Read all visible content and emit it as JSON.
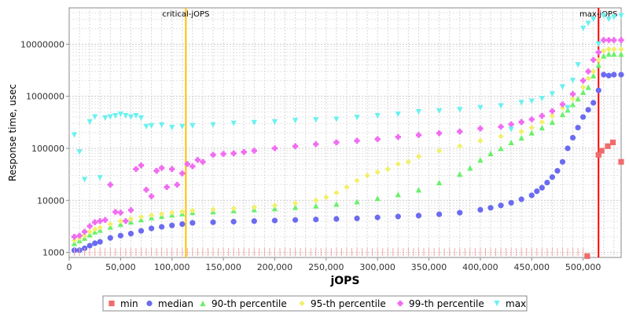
{
  "chart_data": {
    "type": "scatter",
    "xlabel": "jOPS",
    "ylabel": "Response time, usec",
    "xlim": [
      0,
      537000
    ],
    "ylim": [
      800,
      50000000
    ],
    "y_scale": "log",
    "grid": true,
    "legend_position": "bottom",
    "x_ticks": [
      0,
      50000,
      100000,
      150000,
      200000,
      250000,
      300000,
      350000,
      400000,
      450000,
      500000
    ],
    "x_tick_labels": [
      "0",
      "50,000",
      "100,000",
      "150,000",
      "200,000",
      "250,000",
      "300,000",
      "350,000",
      "400,000",
      "450,000",
      "500,000"
    ],
    "y_ticks": [
      1000,
      10000,
      100000,
      1000000,
      10000000
    ],
    "y_tick_labels": [
      "1000",
      "10000",
      "100000",
      "1000000",
      "10000000"
    ],
    "markers": [
      {
        "label": "critical-jOPS",
        "x": 113500,
        "color": "#ffc000"
      },
      {
        "label": "max-jOPS",
        "x": 515000,
        "color": "#ff0000"
      }
    ],
    "series": [
      {
        "name": "min",
        "color": "#f06b6b",
        "shape": "square",
        "x": [
          504000,
          515000,
          518000,
          524000,
          529000,
          537000
        ],
        "y": [
          850,
          75000,
          90000,
          110000,
          130000,
          55000
        ]
      },
      {
        "name": "median",
        "color": "#6b6bf0",
        "shape": "circle",
        "x": [
          5000,
          10000,
          15000,
          20000,
          25000,
          30000,
          40000,
          50000,
          60000,
          70000,
          80000,
          90000,
          100000,
          110000,
          120000,
          140000,
          160000,
          180000,
          200000,
          220000,
          240000,
          260000,
          280000,
          300000,
          320000,
          340000,
          360000,
          380000,
          400000,
          410000,
          420000,
          430000,
          440000,
          450000,
          455000,
          460000,
          465000,
          470000,
          475000,
          480000,
          485000,
          490000,
          495000,
          500000,
          505000,
          510000,
          515000,
          520000,
          525000,
          530000,
          537000
        ],
        "y": [
          1100,
          1100,
          1200,
          1350,
          1500,
          1600,
          1900,
          2100,
          2300,
          2600,
          2900,
          3100,
          3300,
          3500,
          3700,
          3800,
          3900,
          4000,
          4100,
          4200,
          4300,
          4400,
          4500,
          4700,
          4900,
          5100,
          5400,
          5800,
          6600,
          7200,
          8000,
          9000,
          10500,
          12500,
          15000,
          17500,
          22000,
          28000,
          37000,
          55000,
          100000,
          160000,
          250000,
          400000,
          550000,
          750000,
          1300000,
          2600000,
          2500000,
          2600000,
          2600000
        ]
      },
      {
        "name": "90-th percentile",
        "color": "#6bf06b",
        "shape": "triangle-up",
        "x": [
          5000,
          10000,
          15000,
          20000,
          25000,
          30000,
          40000,
          50000,
          60000,
          70000,
          80000,
          90000,
          100000,
          110000,
          120000,
          140000,
          160000,
          180000,
          200000,
          220000,
          240000,
          260000,
          280000,
          300000,
          320000,
          340000,
          360000,
          380000,
          390000,
          400000,
          410000,
          420000,
          430000,
          440000,
          450000,
          460000,
          470000,
          480000,
          485000,
          490000,
          495000,
          500000,
          505000,
          510000,
          515000,
          520000,
          525000,
          530000,
          537000
        ],
        "y": [
          1500,
          1700,
          1900,
          2200,
          2500,
          2700,
          3100,
          3500,
          3900,
          4300,
          4700,
          5000,
          5300,
          5600,
          5900,
          6100,
          6400,
          6700,
          7000,
          7400,
          7900,
          8500,
          9500,
          11000,
          13000,
          16000,
          22000,
          32000,
          42000,
          60000,
          80000,
          100000,
          130000,
          160000,
          200000,
          250000,
          320000,
          450000,
          550000,
          700000,
          900000,
          1200000,
          1500000,
          2500000,
          4000000,
          6000000,
          6500000,
          6500000,
          6500000
        ]
      },
      {
        "name": "95-th percentile",
        "color": "#f0f06b",
        "shape": "diamond",
        "x": [
          5000,
          10000,
          15000,
          20000,
          25000,
          30000,
          40000,
          50000,
          60000,
          70000,
          80000,
          90000,
          100000,
          110000,
          120000,
          140000,
          160000,
          180000,
          200000,
          220000,
          240000,
          250000,
          260000,
          270000,
          280000,
          290000,
          300000,
          310000,
          320000,
          330000,
          340000,
          360000,
          380000,
          400000,
          420000,
          440000,
          450000,
          460000,
          470000,
          480000,
          490000,
          500000,
          505000,
          510000,
          515000,
          520000,
          525000,
          530000,
          537000
        ],
        "y": [
          1700,
          1900,
          2100,
          2500,
          2800,
          3000,
          3500,
          4000,
          4400,
          4800,
          5200,
          5500,
          5800,
          6100,
          6400,
          6700,
          7000,
          7400,
          8000,
          8800,
          10000,
          11500,
          14000,
          18000,
          24000,
          30000,
          35000,
          40000,
          50000,
          55000,
          70000,
          90000,
          110000,
          140000,
          170000,
          210000,
          250000,
          320000,
          420000,
          600000,
          900000,
          1500000,
          2200000,
          3000000,
          5000000,
          7500000,
          8000000,
          8000000,
          8000000
        ]
      },
      {
        "name": "99-th percentile",
        "color": "#f06bf0",
        "shape": "plus",
        "x": [
          5000,
          10000,
          15000,
          20000,
          25000,
          30000,
          35000,
          40000,
          45000,
          50000,
          55000,
          60000,
          65000,
          70000,
          75000,
          80000,
          85000,
          90000,
          95000,
          100000,
          105000,
          110000,
          115000,
          120000,
          125000,
          130000,
          140000,
          150000,
          160000,
          170000,
          180000,
          200000,
          220000,
          240000,
          260000,
          280000,
          300000,
          320000,
          340000,
          360000,
          380000,
          400000,
          420000,
          430000,
          440000,
          450000,
          460000,
          470000,
          480000,
          490000,
          500000,
          505000,
          510000,
          515000,
          520000,
          525000,
          530000,
          537000
        ],
        "y": [
          2000,
          2100,
          2500,
          3200,
          3800,
          4000,
          4200,
          20000,
          6000,
          5800,
          4000,
          6500,
          40000,
          47000,
          16000,
          12000,
          37000,
          42000,
          18000,
          40000,
          20000,
          33000,
          50000,
          45000,
          60000,
          55000,
          75000,
          78000,
          80000,
          85000,
          90000,
          100000,
          110000,
          120000,
          130000,
          140000,
          150000,
          165000,
          180000,
          195000,
          210000,
          240000,
          260000,
          290000,
          320000,
          360000,
          420000,
          520000,
          700000,
          1100000,
          2000000,
          3000000,
          5000000,
          7000000,
          12000000,
          12000000,
          12000000,
          12000000
        ]
      },
      {
        "name": "max",
        "color": "#6bf0f0",
        "shape": "triangle-down",
        "x": [
          5000,
          10000,
          15000,
          20000,
          25000,
          30000,
          35000,
          40000,
          45000,
          50000,
          55000,
          60000,
          65000,
          70000,
          75000,
          80000,
          90000,
          100000,
          110000,
          120000,
          140000,
          160000,
          180000,
          200000,
          220000,
          240000,
          260000,
          280000,
          300000,
          320000,
          340000,
          360000,
          380000,
          400000,
          420000,
          430000,
          440000,
          450000,
          460000,
          470000,
          480000,
          485000,
          490000,
          495000,
          500000,
          505000,
          510000,
          515000,
          520000,
          525000,
          530000,
          537000
        ],
        "y": [
          180000,
          85000,
          25000,
          320000,
          400000,
          27000,
          380000,
          400000,
          420000,
          450000,
          420000,
          400000,
          420000,
          380000,
          260000,
          270000,
          280000,
          250000,
          260000,
          270000,
          280000,
          300000,
          310000,
          320000,
          340000,
          350000,
          360000,
          390000,
          420000,
          450000,
          500000,
          520000,
          550000,
          600000,
          650000,
          230000,
          750000,
          800000,
          900000,
          1100000,
          1500000,
          600000,
          2000000,
          4000000,
          20000000,
          25000000,
          30000000,
          10000000,
          35000000,
          30000000,
          33000000,
          35000000
        ]
      }
    ]
  }
}
